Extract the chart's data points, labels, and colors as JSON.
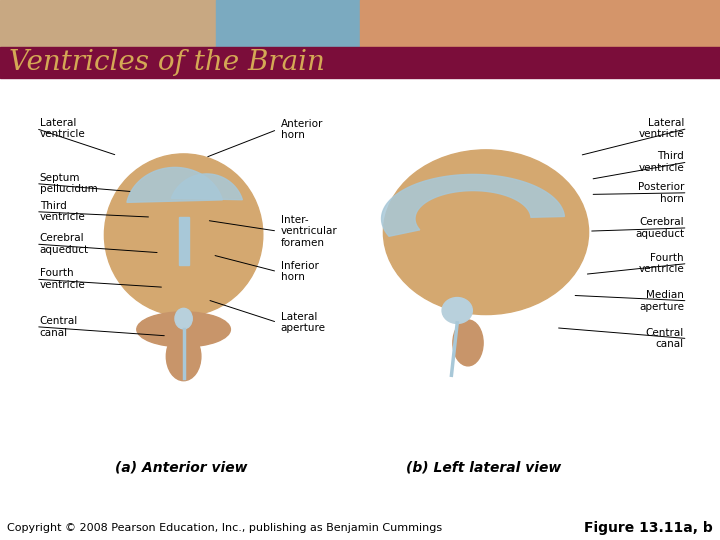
{
  "title": "Ventricles of the Brain",
  "title_bg_color": "#7B0D3A",
  "title_text_color": "#D4A855",
  "title_fontsize": 20,
  "bg_color": "#FFFFFF",
  "copyright_text": "Copyright © 2008 Pearson Education, Inc., publishing as Benjamin Cummings",
  "figure_label": "Figure 13.11a, b",
  "copyright_fontsize": 8,
  "figure_label_fontsize": 10,
  "caption_a": "(a) Anterior view",
  "caption_b": "(b) Left lateral view",
  "caption_fontsize": 10,
  "label_fontsize": 7.5,
  "line_color": "#000000",
  "brain_color": "#D4A870",
  "stem_color": "#C8956A",
  "ventricle_color": "#A8C8D8"
}
